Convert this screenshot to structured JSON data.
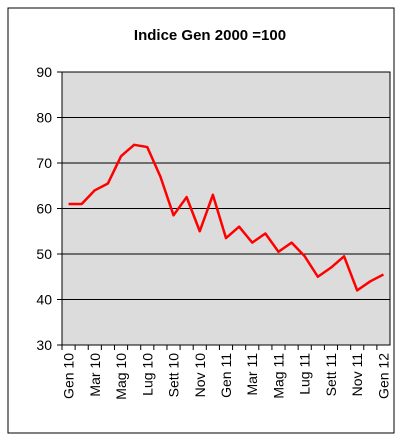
{
  "chart_data": {
    "type": "line",
    "title": "Indice Gen  2000 =100",
    "categories": [
      "Gen 10",
      null,
      "Mar 10",
      null,
      "Mag 10",
      null,
      "Lug 10",
      null,
      "Sett 10",
      null,
      "Nov 10",
      null,
      "Gen 11",
      null,
      "Mar 11",
      null,
      "Mag 11",
      null,
      "Lug 11",
      null,
      "Sett 11",
      null,
      "Nov 11",
      null,
      "Gen 12"
    ],
    "series": [
      {
        "color": "#ff0000",
        "values": [
          61,
          61,
          64,
          65.5,
          71.5,
          74,
          73.5,
          67,
          58.5,
          62.5,
          55,
          63,
          53.5,
          56,
          52.5,
          54.5,
          50.5,
          52.5,
          49.5,
          45,
          47,
          49.5,
          42,
          44,
          45.5
        ]
      }
    ],
    "ylim": [
      30,
      90
    ],
    "yticks": [
      30,
      40,
      50,
      60,
      70,
      80,
      90
    ],
    "grid": true
  }
}
